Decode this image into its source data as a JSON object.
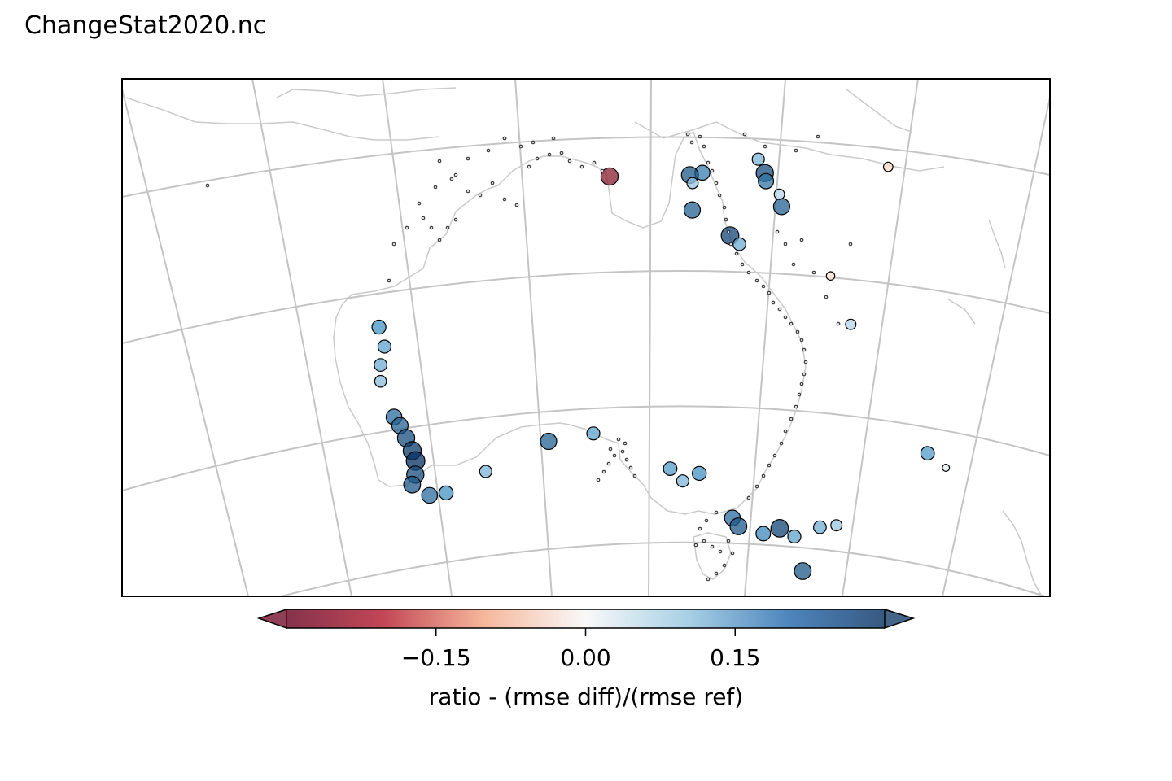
{
  "title": "ChangeStat2020.nc",
  "colorbar": {
    "label": "ratio - (rmse diff)/(rmse ref)",
    "ticks": [
      "−0.15",
      "0.00",
      "0.15"
    ],
    "tick_values": [
      -0.15,
      0.0,
      0.15
    ],
    "vmin": -0.3,
    "vmax": 0.3,
    "extend": "both",
    "colormap": "RdBu",
    "colors": [
      "#67001f",
      "#d6604d",
      "#fddbc7",
      "#f7f7f7",
      "#d1e5f0",
      "#4393c3",
      "#053061"
    ]
  },
  "map": {
    "region": "Australia",
    "projection": "conic",
    "gridlines": true,
    "coastlines_color": "#c8c8c8",
    "gridline_color": "#c0c0c0"
  },
  "chart_data": {
    "type": "scatter",
    "title": "ChangeStat2020.nc",
    "colorbar_label": "ratio - (rmse diff)/(rmse ref)",
    "marker_size_encodes": "absolute ratio",
    "note_on_units": "x = longitude (deg E), y = latitude (deg), value = ratio",
    "series": [
      {
        "points": [
          {
            "lon": 113.6,
            "lat": -22.0,
            "value": 0.2
          },
          {
            "lon": 113.9,
            "lat": -23.5,
            "value": 0.18
          },
          {
            "lon": 113.5,
            "lat": -24.8,
            "value": 0.17
          },
          {
            "lon": 113.4,
            "lat": -26.0,
            "value": 0.15
          },
          {
            "lon": 114.2,
            "lat": -28.8,
            "value": 0.24
          },
          {
            "lon": 114.6,
            "lat": -29.5,
            "value": 0.25
          },
          {
            "lon": 115.0,
            "lat": -30.5,
            "value": 0.27
          },
          {
            "lon": 115.4,
            "lat": -31.5,
            "value": 0.29
          },
          {
            "lon": 115.6,
            "lat": -32.3,
            "value": 0.3
          },
          {
            "lon": 115.5,
            "lat": -33.3,
            "value": 0.27
          },
          {
            "lon": 115.2,
            "lat": -34.0,
            "value": 0.26
          },
          {
            "lon": 116.5,
            "lat": -35.0,
            "value": 0.24
          },
          {
            "lon": 117.8,
            "lat": -35.0,
            "value": 0.2
          },
          {
            "lon": 121.0,
            "lat": -33.8,
            "value": 0.16
          },
          {
            "lon": 126.0,
            "lat": -32.0,
            "value": 0.25
          },
          {
            "lon": 129.5,
            "lat": -31.6,
            "value": 0.18
          },
          {
            "lon": 135.5,
            "lat": -34.3,
            "value": 0.19
          },
          {
            "lon": 136.5,
            "lat": -35.2,
            "value": 0.16
          },
          {
            "lon": 137.8,
            "lat": -34.6,
            "value": 0.2
          },
          {
            "lon": 140.5,
            "lat": -37.8,
            "value": 0.24
          },
          {
            "lon": 141.0,
            "lat": -38.4,
            "value": 0.26
          },
          {
            "lon": 143.0,
            "lat": -38.8,
            "value": 0.21
          },
          {
            "lon": 144.3,
            "lat": -38.3,
            "value": 0.28
          },
          {
            "lon": 145.5,
            "lat": -38.8,
            "value": 0.18
          },
          {
            "lon": 147.5,
            "lat": -37.9,
            "value": 0.17
          },
          {
            "lon": 148.8,
            "lat": -37.6,
            "value": 0.14
          },
          {
            "lon": 146.3,
            "lat": -41.3,
            "value": 0.26
          },
          {
            "lon": 131.0,
            "lat": -12.5,
            "value": -0.27
          },
          {
            "lon": 137.7,
            "lat": -12.2,
            "value": 0.22
          },
          {
            "lon": 136.8,
            "lat": -12.4,
            "value": 0.26
          },
          {
            "lon": 137.0,
            "lat": -13.0,
            "value": 0.14
          },
          {
            "lon": 137.0,
            "lat": -15.0,
            "value": 0.25
          },
          {
            "lon": 139.8,
            "lat": -16.8,
            "value": 0.28
          },
          {
            "lon": 140.5,
            "lat": -17.4,
            "value": 0.17
          },
          {
            "lon": 141.7,
            "lat": -11.0,
            "value": 0.16
          },
          {
            "lon": 142.2,
            "lat": -12.0,
            "value": 0.27
          },
          {
            "lon": 142.3,
            "lat": -12.6,
            "value": 0.23
          },
          {
            "lon": 143.5,
            "lat": -14.4,
            "value": 0.25
          },
          {
            "lon": 143.3,
            "lat": -13.5,
            "value": 0.12
          },
          {
            "lon": 147.3,
            "lat": -19.2,
            "value": -0.08
          },
          {
            "lon": 149.0,
            "lat": -22.6,
            "value": 0.12
          },
          {
            "lon": 151.0,
            "lat": -10.6,
            "value": -0.1
          },
          {
            "lon": 155.5,
            "lat": -31.2,
            "value": 0.19
          },
          {
            "lon": 157.0,
            "lat": -32.0,
            "value": 0.05
          }
        ]
      }
    ]
  }
}
